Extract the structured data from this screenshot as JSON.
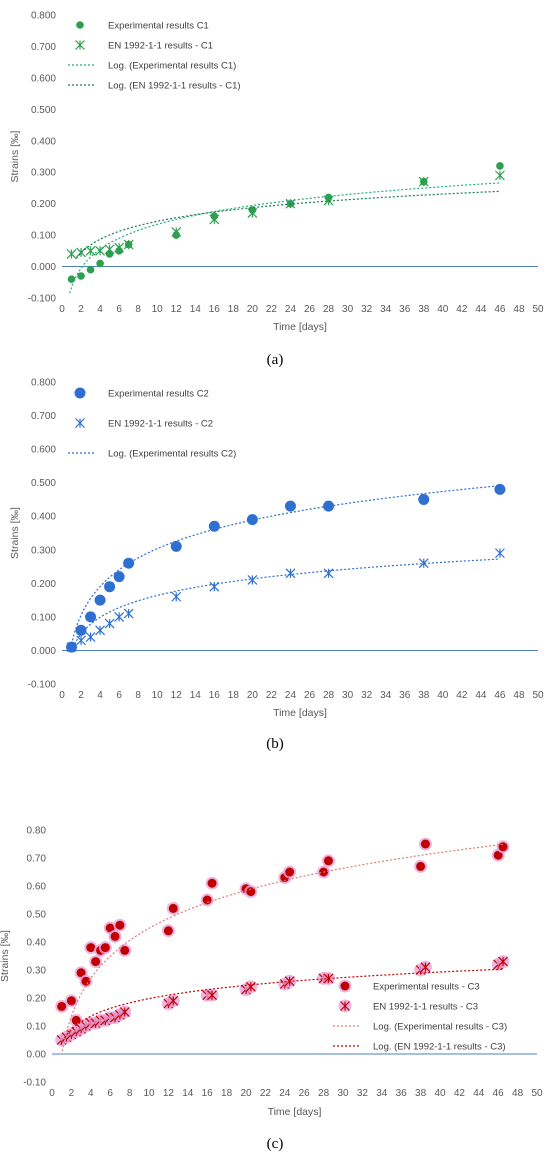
{
  "chart_data": [
    {
      "type": "scatter",
      "caption": "(a)",
      "xlabel": "Time [days]",
      "ylabel": "Strains [‰]",
      "xlim": [
        0,
        50
      ],
      "ylim": [
        -0.1,
        0.8
      ],
      "xticks": [
        0,
        2,
        4,
        6,
        8,
        10,
        12,
        14,
        16,
        18,
        20,
        22,
        24,
        26,
        28,
        30,
        32,
        34,
        36,
        38,
        40,
        42,
        44,
        46,
        48,
        50
      ],
      "yticks": [
        "-0.100",
        "0.000",
        "0.100",
        "0.200",
        "0.300",
        "0.400",
        "0.500",
        "0.600",
        "0.700",
        "0.800"
      ],
      "grid": false,
      "legend_position": "top-left",
      "series": [
        {
          "name": "Experimental results C1",
          "marker": "circle",
          "color": "#2e9e4f",
          "x": [
            1,
            2,
            3,
            4,
            5,
            6,
            7,
            12,
            16,
            20,
            24,
            28,
            38,
            46
          ],
          "y": [
            -0.04,
            -0.03,
            -0.01,
            0.01,
            0.04,
            0.05,
            0.07,
            0.1,
            0.16,
            0.18,
            0.2,
            0.22,
            0.27,
            0.32
          ]
        },
        {
          "name": "EN 1992-1-1 results - C1",
          "marker": "asterisk",
          "color": "#2e9e4f",
          "x": [
            1,
            2,
            3,
            4,
            5,
            6,
            7,
            12,
            16,
            20,
            24,
            28,
            38,
            46
          ],
          "y": [
            0.04,
            0.045,
            0.05,
            0.05,
            0.055,
            0.06,
            0.07,
            0.11,
            0.15,
            0.17,
            0.2,
            0.21,
            0.27,
            0.29
          ]
        },
        {
          "name": "Log. (Experimental results C1)",
          "type": "trend",
          "color": "#1fb07a",
          "dash": "2,2",
          "a": -0.065,
          "b": 0.0865,
          "xrange": [
            0.8,
            46
          ]
        },
        {
          "name": "Log. (EN 1992-1-1 results - C1)",
          "type": "trend",
          "color": "#1f7a55",
          "dash": "2,2",
          "a": 0.0,
          "b": 0.0625,
          "xrange": [
            1.5,
            46
          ]
        }
      ]
    },
    {
      "type": "scatter",
      "caption": "(b)",
      "xlabel": "Time [days]",
      "ylabel": "Strains [‰]",
      "xlim": [
        0,
        50
      ],
      "ylim": [
        -0.1,
        0.8
      ],
      "xticks": [
        0,
        2,
        4,
        6,
        8,
        10,
        12,
        14,
        16,
        18,
        20,
        22,
        24,
        26,
        28,
        30,
        32,
        34,
        36,
        38,
        40,
        42,
        44,
        46,
        48,
        50
      ],
      "yticks": [
        "-0.100",
        "0.000",
        "0.100",
        "0.200",
        "0.300",
        "0.400",
        "0.500",
        "0.600",
        "0.700",
        "0.800"
      ],
      "grid": false,
      "legend_position": "top-left",
      "series": [
        {
          "name": "Experimental results C2",
          "marker": "circle",
          "color": "#2e6fd0",
          "x": [
            1,
            2,
            3,
            4,
            5,
            6,
            7,
            12,
            16,
            20,
            24,
            28,
            38,
            46
          ],
          "y": [
            0.01,
            0.06,
            0.1,
            0.15,
            0.19,
            0.22,
            0.26,
            0.31,
            0.37,
            0.39,
            0.43,
            0.43,
            0.45,
            0.48
          ]
        },
        {
          "name": "EN 1992-1-1 results - C2",
          "marker": "asterisk",
          "color": "#2e6fd0",
          "x": [
            1,
            2,
            3,
            4,
            5,
            6,
            7,
            12,
            16,
            20,
            24,
            28,
            38,
            46
          ],
          "y": [
            0.01,
            0.03,
            0.04,
            0.06,
            0.08,
            0.1,
            0.11,
            0.16,
            0.19,
            0.21,
            0.23,
            0.23,
            0.26,
            0.29
          ]
        },
        {
          "name": "Log. (Experimental results C2)",
          "type": "trend",
          "color": "#2e6fd0",
          "dash": "2,2",
          "a": 0.02,
          "b": 0.123,
          "xrange": [
            0.9,
            46
          ]
        },
        {
          "name": "",
          "type": "trend",
          "color": "#2e6fd0",
          "dash": "2,2",
          "a": 0.0,
          "b": 0.0712,
          "xrange": [
            1.3,
            46
          ]
        }
      ]
    },
    {
      "type": "scatter",
      "caption": "(c)",
      "xlabel": "Time [days]",
      "ylabel": "Strains [‰]",
      "xlim": [
        0,
        50
      ],
      "ylim": [
        -0.1,
        0.8
      ],
      "xticks": [
        0,
        2,
        4,
        6,
        8,
        10,
        12,
        14,
        16,
        18,
        20,
        22,
        24,
        26,
        28,
        30,
        32,
        34,
        36,
        38,
        40,
        42,
        44,
        46,
        48,
        50
      ],
      "yticks": [
        "-0.10",
        "0.00",
        "0.10",
        "0.20",
        "0.30",
        "0.40",
        "0.50",
        "0.60",
        "0.70",
        "0.80"
      ],
      "grid": false,
      "legend_position": "bottom-right",
      "series": [
        {
          "name": "Experimental results - C3",
          "marker": "circle",
          "color": "#c00000",
          "halo": "#e9a3d9",
          "x": [
            1,
            2,
            2.5,
            3,
            3.5,
            4,
            4.5,
            5,
            5.5,
            6,
            6.5,
            7,
            7.5,
            12,
            12.5,
            16,
            16.5,
            20,
            20.5,
            24,
            24.5,
            28,
            28.5,
            38,
            38.5,
            46,
            46.5
          ],
          "y": [
            0.17,
            0.19,
            0.12,
            0.29,
            0.26,
            0.38,
            0.33,
            0.37,
            0.38,
            0.45,
            0.42,
            0.46,
            0.37,
            0.44,
            0.52,
            0.55,
            0.61,
            0.59,
            0.58,
            0.63,
            0.65,
            0.65,
            0.69,
            0.67,
            0.75,
            0.71,
            0.74
          ]
        },
        {
          "name": "EN 1992-1-1 results - C3",
          "marker": "asterisk",
          "color": "#c00000",
          "halo": "#e9a3d9",
          "x": [
            1,
            1.5,
            2,
            2.5,
            3,
            3.5,
            4,
            4.5,
            5,
            5.5,
            6,
            6.5,
            7,
            7.5,
            12,
            12.5,
            16,
            16.5,
            20,
            20.5,
            24,
            24.5,
            28,
            28.5,
            38,
            38.5,
            46,
            46.5
          ],
          "y": [
            0.05,
            0.06,
            0.07,
            0.08,
            0.09,
            0.1,
            0.11,
            0.11,
            0.12,
            0.12,
            0.13,
            0.13,
            0.14,
            0.15,
            0.18,
            0.19,
            0.21,
            0.21,
            0.23,
            0.24,
            0.25,
            0.26,
            0.27,
            0.27,
            0.3,
            0.31,
            0.32,
            0.33
          ]
        },
        {
          "name": "Log. (Experimental results - C3)",
          "type": "trend",
          "color": "#e07b7b",
          "dash": "2,2",
          "a": 0.0,
          "b": 0.195,
          "xrange": [
            1.05,
            46.5
          ]
        },
        {
          "name": "Log. (EN 1992-1-1 results - C3)",
          "type": "trend",
          "color": "#c00000",
          "dash": "2,2",
          "a": 0.04,
          "b": 0.0685,
          "xrange": [
            0.9,
            46.5
          ]
        }
      ]
    }
  ]
}
